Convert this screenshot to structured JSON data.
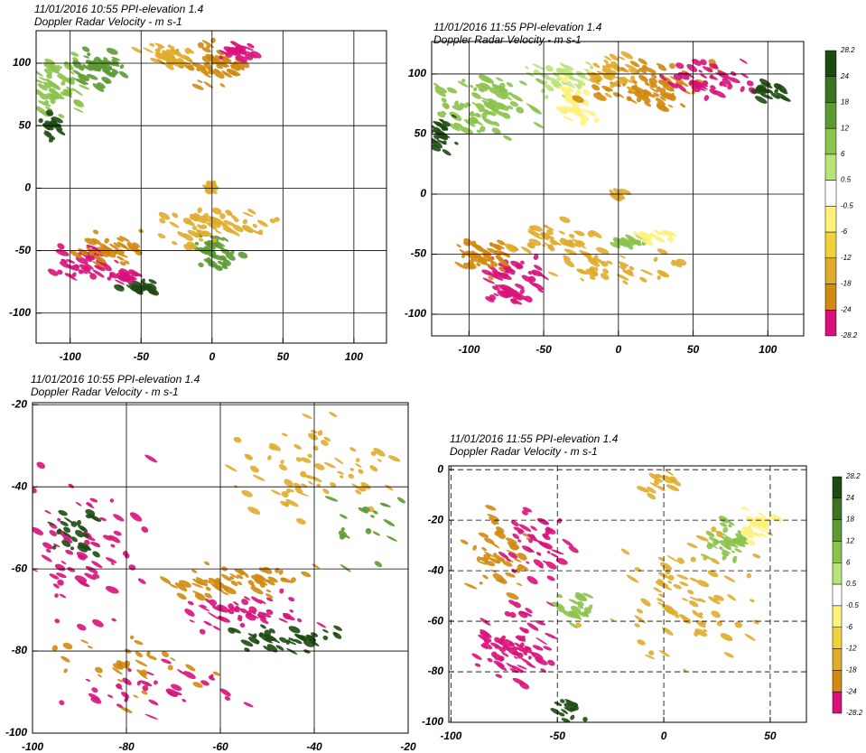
{
  "chart_data": [
    {
      "type": "radar-ppi",
      "title": "11/01/2016 10:55 PPI-elevation 1.4",
      "subtitle": "Doppler Radar Velocity - m s-1",
      "xlim": [
        -124,
        123
      ],
      "ylim": [
        -124,
        126
      ],
      "xticks": [
        -100,
        -50,
        0,
        50,
        100
      ],
      "yticks": [
        -100,
        -50,
        0,
        50,
        100
      ],
      "grid": "solid"
    },
    {
      "type": "radar-ppi",
      "title": "11/01/2016 11:55 PPI-elevation 1.4",
      "subtitle": "Doppler Radar Velocity - m s-1",
      "xlim": [
        -125,
        124
      ],
      "ylim": [
        -118,
        127
      ],
      "xticks": [
        -100,
        -50,
        0,
        50,
        100
      ],
      "yticks": [
        -100,
        -50,
        0,
        50,
        100
      ],
      "grid": "solid",
      "colorbar": {
        "ticks": [
          28.2,
          24,
          18,
          12,
          6,
          0.5,
          -0.5,
          -6,
          -12,
          -18,
          -24,
          -28.2
        ],
        "colors": [
          "#1e4a12",
          "#3c7424",
          "#5e9a34",
          "#8cc24c",
          "#b8e47a",
          "#ffffff",
          "#fff27a",
          "#f2d23c",
          "#e0ac2e",
          "#d08a10",
          "#d8127a"
        ]
      }
    },
    {
      "type": "radar-ppi",
      "title": "11/01/2016 10:55 PPI-elevation 1.4",
      "subtitle": "Doppler Radar Velocity - m s-1",
      "xlim": [
        -100,
        -20
      ],
      "ylim": [
        -100,
        -19.5
      ],
      "xticks": [
        -100,
        -80,
        -60,
        -40,
        -20
      ],
      "yticks": [
        -100,
        -80,
        -60,
        -40,
        -20
      ],
      "grid": "solid"
    },
    {
      "type": "radar-ppi",
      "title": "11/01/2016 11:55 PPI-elevation 1.4",
      "subtitle": "Doppler Radar Velocity - m s-1",
      "xlim": [
        -101,
        67
      ],
      "ylim": [
        -100,
        1.5
      ],
      "xticks": [
        -100,
        -50,
        0,
        50
      ],
      "yticks": [
        -100,
        -80,
        -60,
        -40,
        -20,
        0
      ],
      "grid": "dashed",
      "colorbar": {
        "ticks": [
          28.2,
          24,
          18,
          12,
          6,
          0.5,
          -0.5,
          -6,
          -12,
          -18,
          -24,
          -28.2
        ],
        "colors": [
          "#1e4a12",
          "#3c7424",
          "#5e9a34",
          "#8cc24c",
          "#b8e47a",
          "#ffffff",
          "#fff27a",
          "#f2d23c",
          "#e0ac2e",
          "#d08a10",
          "#d8127a"
        ]
      }
    }
  ]
}
